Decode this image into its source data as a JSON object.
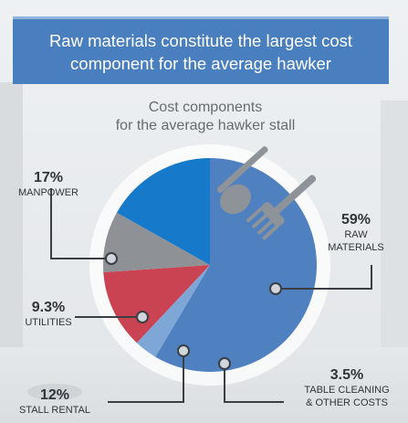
{
  "banner": {
    "title_line1": "Raw materials constitute the largest cost",
    "title_line2": "component for the average hawker"
  },
  "chart_data": {
    "type": "pie",
    "title_line1": "Cost components",
    "title_line2": "for the average hawker stall",
    "slices": [
      {
        "label": "RAW MATERIALS",
        "label_line1": "RAW",
        "label_line2": "MATERIALS",
        "value": 59,
        "display": "59%",
        "color": "#4f80c0"
      },
      {
        "label": "TABLE CLEANING & OTHER COSTS",
        "label_line1": "TABLE CLEANING",
        "label_line2": "& OTHER COSTS",
        "value": 3.5,
        "display": "3.5%",
        "color": "#7ea6d6"
      },
      {
        "label": "STALL RENTAL",
        "label_line1": "STALL RENTAL",
        "value": 12,
        "display": "12%",
        "color": "#c94352"
      },
      {
        "label": "UTILITIES",
        "label_line1": "UTILITIES",
        "value": 9.3,
        "display": "9.3%",
        "color": "#8e9196"
      },
      {
        "label": "MANPOWER",
        "label_line1": "MANPOWER",
        "value": 17,
        "display": "17%",
        "color": "#1679c9"
      }
    ]
  },
  "icons": {
    "cutlery": "spoon-and-fork-icon"
  }
}
